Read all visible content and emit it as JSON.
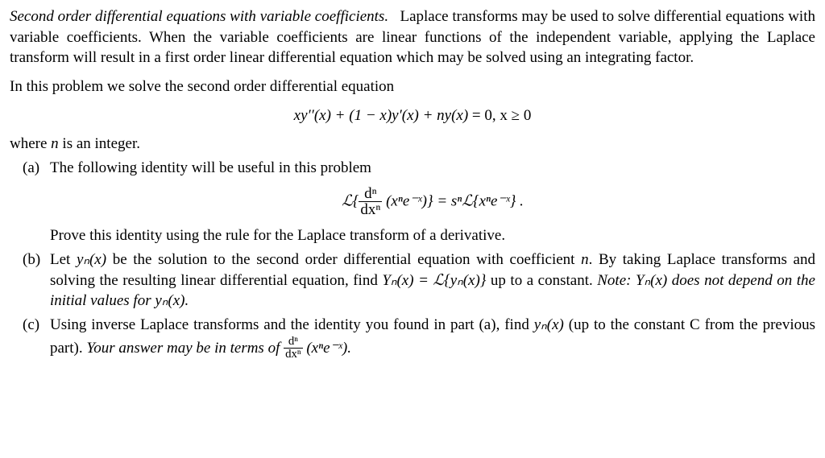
{
  "intro": {
    "title": "Second order differential equations with variable coefficients.",
    "body1": "Laplace transforms may be used to solve differential equations with variable coefficients. When the variable coefficients are linear functions of the independent variable, applying the Laplace transform will result in a first order linear differential equation which may be solved using an integrating factor.",
    "lead": "In this problem we solve the second order differential equation",
    "where": "where ",
    "where_n": "n",
    "where_tail": " is an integer."
  },
  "eqn": {
    "main_lhs": "xy′′(x) + (1 − x)y′(x) + ny(x)",
    "main_rhs": " = 0,   x ≥ 0",
    "ident_lhs_pre": "ℒ{",
    "frac_num": "dⁿ",
    "frac_den": "dxⁿ",
    "ident_lhs_post": " (xⁿe⁻ˣ)}  =  sⁿℒ{xⁿe⁻ˣ} ."
  },
  "parts": {
    "a": {
      "label": "(a)",
      "line1": "The following identity will be useful in this problem",
      "after": "Prove this identity using the rule for the Laplace transform of a derivative."
    },
    "b": {
      "label": "(b)",
      "text1": "Let ",
      "yn": "yₙ(x)",
      "text2": " be the solution to the second order differential equation with coefficient ",
      "ncoef": "n",
      "text3": ". By taking Laplace transforms and solving the resulting linear differential equation, find ",
      "Yn_eq": "Yₙ(x) = ℒ{yₙ(x)}",
      "text4": " up to a constant. ",
      "note_label": "Note: ",
      "note_body_Y": "Yₙ(x)",
      "note_body_mid": " does not depend on the initial values for ",
      "note_body_y": "yₙ(x)."
    },
    "c": {
      "label": "(c)",
      "text1": "Using inverse Laplace transforms and the identity you found in part (a), find ",
      "yn": "yₙ(x)",
      "text2": " (up to the constant C from the previous part). ",
      "note": "Your answer may be in terms of ",
      "frac_num": "dⁿ",
      "frac_den": "dxⁿ",
      "expr": " (xⁿe⁻ˣ)."
    }
  }
}
